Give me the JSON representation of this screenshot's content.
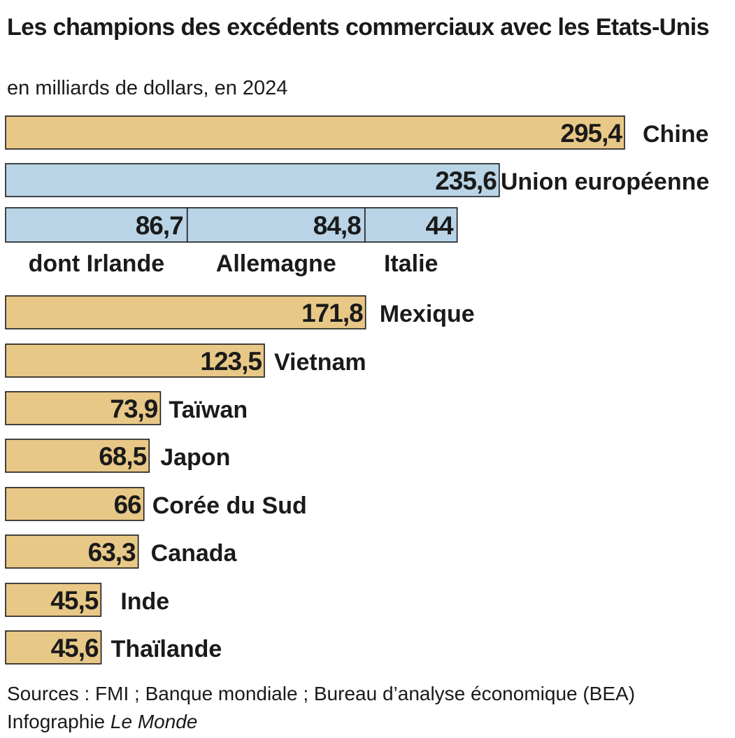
{
  "header": {
    "title": "Les champions des excédents commerciaux avec les Etats-Unis",
    "subtitle": "en milliards de dollars, en 2024"
  },
  "footer": {
    "sources": "Sources : FMI ; Banque mondiale ; Bureau d’analyse économique (BEA)",
    "credit_prefix": "Infographie",
    "credit_brand": "Le Monde"
  },
  "colors": {
    "main": "#e8c887",
    "eu": "#b9d4e6",
    "outline": "#1a1a1a"
  },
  "chart_data": {
    "type": "bar",
    "orientation": "horizontal",
    "title": "Les champions des excédents commerciaux avec les Etats-Unis",
    "subtitle": "en milliards de dollars, en 2024",
    "unit": "milliards de dollars",
    "xlim": [
      0,
      295.4
    ],
    "grid": false,
    "legend": "none",
    "categories": [
      "Chine",
      "Union européenne",
      "Mexique",
      "Vietnam",
      "Taïwan",
      "Japon",
      "Corée du Sud",
      "Canada",
      "Inde",
      "Thaïlande"
    ],
    "values": [
      295.4,
      235.6,
      171.8,
      123.5,
      73.9,
      68.5,
      66,
      63.3,
      45.5,
      45.6
    ],
    "value_labels": [
      "295,4",
      "235,6",
      "171,8",
      "123,5",
      "73,9",
      "68,5",
      "66",
      "63,3",
      "45,5",
      "45,6"
    ],
    "eu_breakdown": {
      "categories": [
        "dont Irlande",
        "Allemagne",
        "Italie"
      ],
      "values": [
        86.7,
        84.8,
        44
      ],
      "value_labels": [
        "86,7",
        "84,8",
        "44"
      ]
    }
  }
}
